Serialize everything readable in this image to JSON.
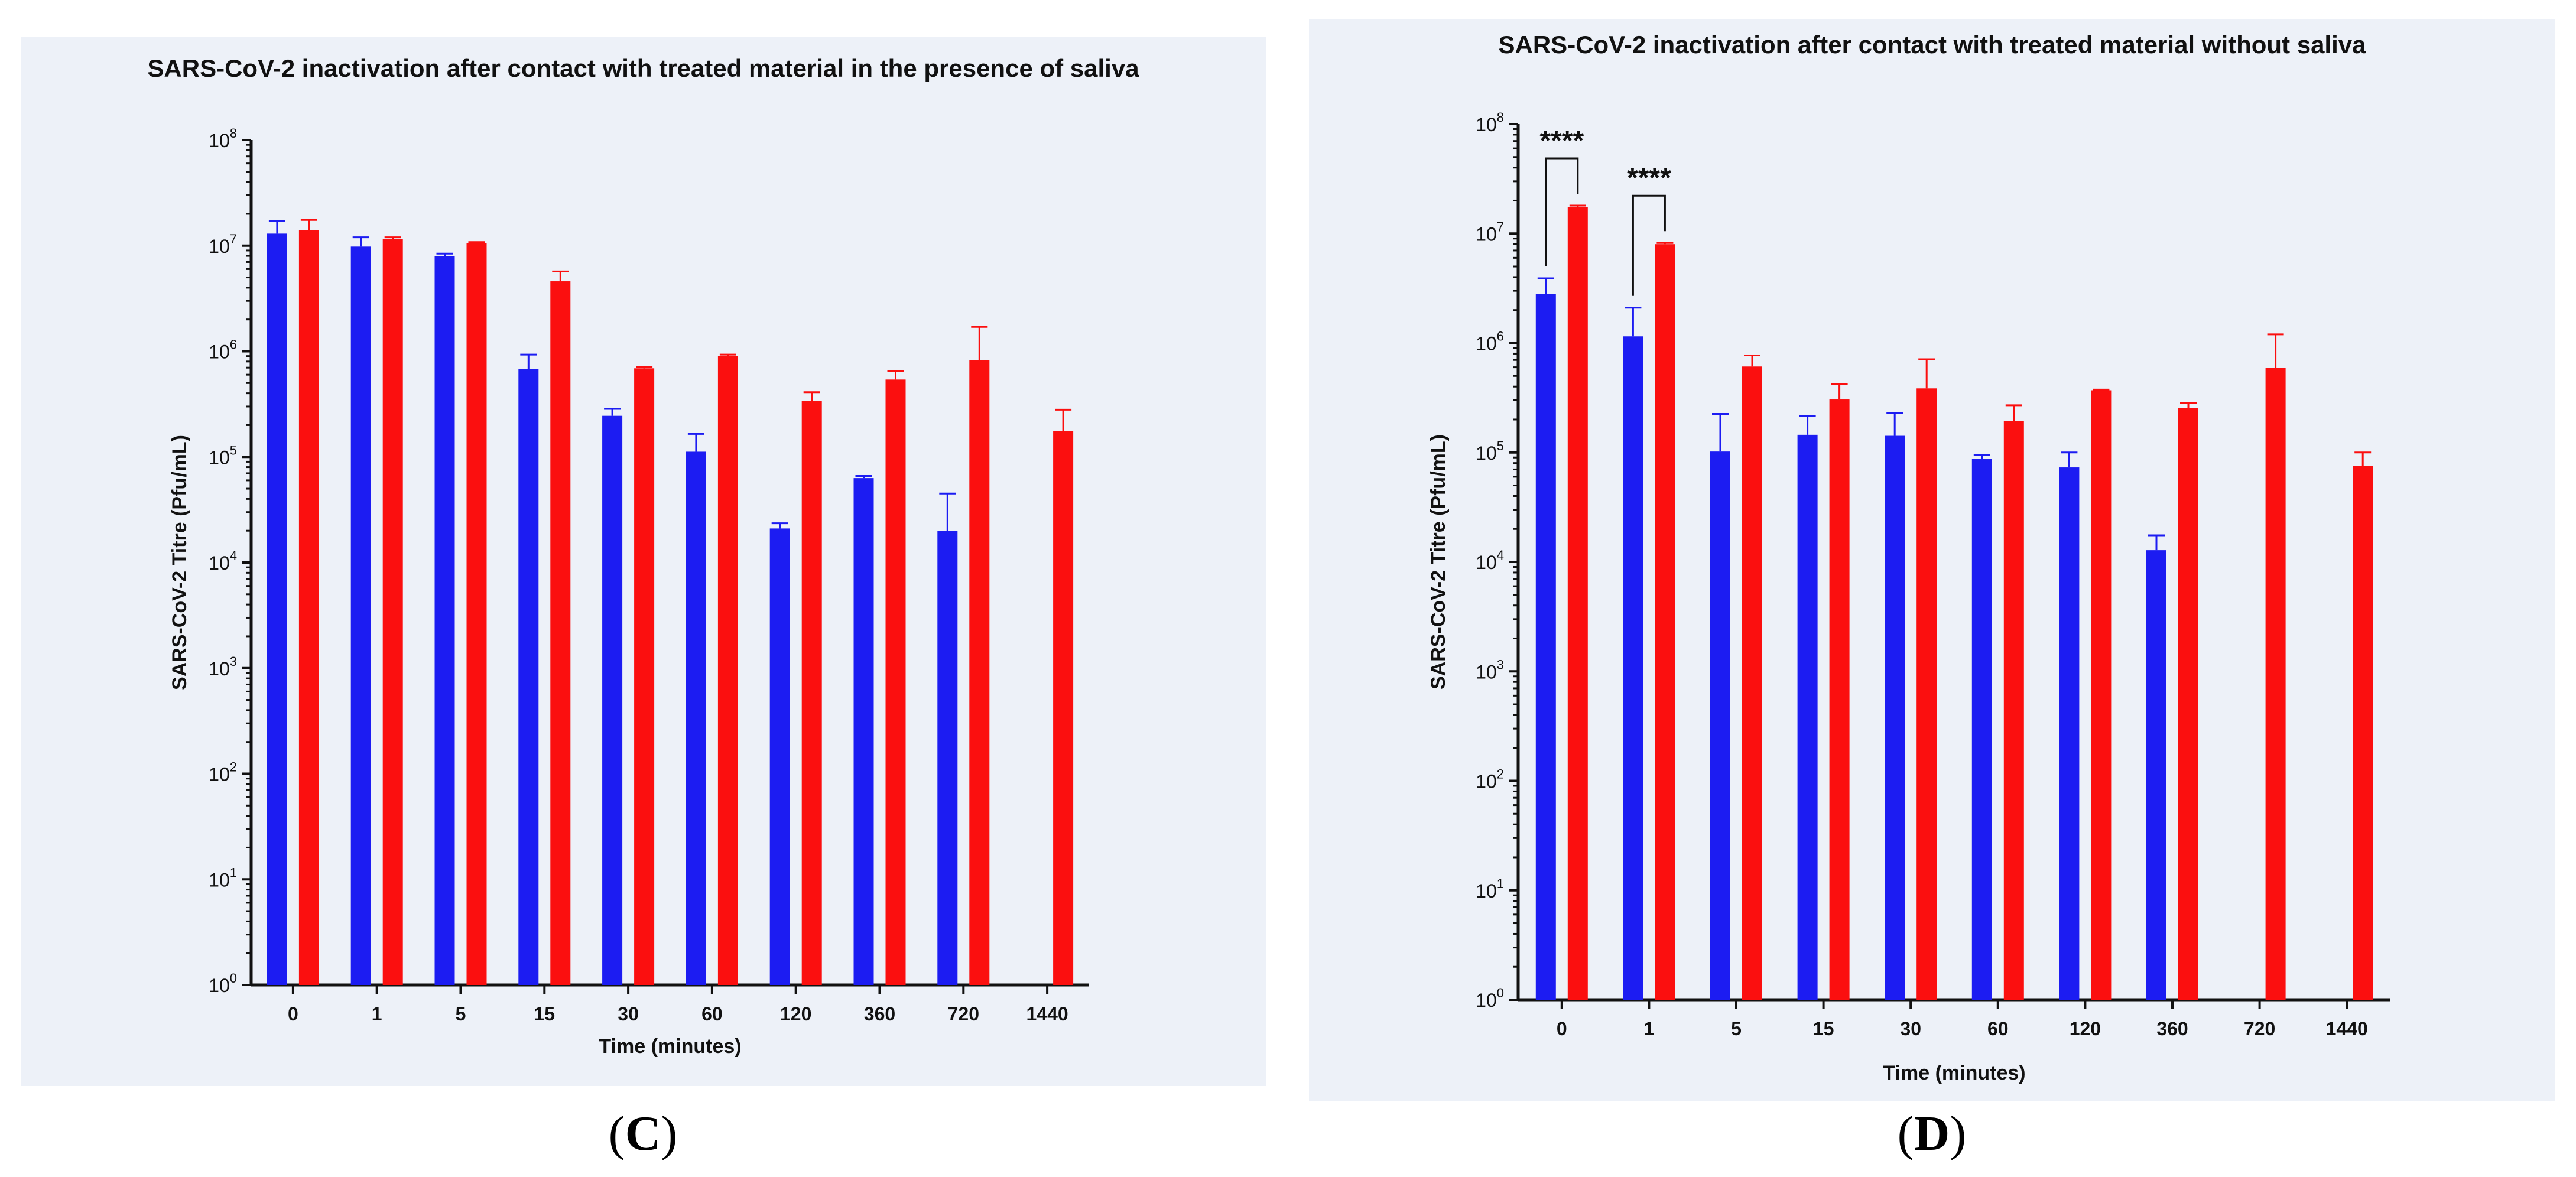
{
  "colors": {
    "series_a": "#1c1cf2",
    "series_b": "#fb0f0f",
    "panel_bg": "#edf1f8",
    "axis": "#111111"
  },
  "panels": [
    {
      "label_open": "(",
      "label_letter": "C",
      "label_close": ")"
    },
    {
      "label_open": "(",
      "label_letter": "D",
      "label_close": ")"
    }
  ],
  "chart_data": [
    {
      "type": "bar",
      "title": "SARS-CoV-2 inactivation after contact with treated material in the presence of saliva",
      "xlabel": "Time (minutes)",
      "ylabel": "SARS-CoV-2 Titre (Pfu/mL)",
      "yscale": "log10",
      "ylim": [
        1,
        100000000
      ],
      "ytick_exponents": [
        "0",
        "1",
        "2",
        "3",
        "4",
        "5",
        "6",
        "7",
        "8"
      ],
      "ytick_base": "10",
      "categories": [
        "0",
        "1",
        "5",
        "15",
        "30",
        "60",
        "120",
        "360",
        "720",
        "1440"
      ],
      "series": [
        {
          "name": "blue series",
          "color": "#1c1cf2",
          "values": [
            13000000,
            9800000,
            8000000,
            680000,
            245000,
            112000,
            21000,
            63000,
            20000,
            null
          ],
          "errors": [
            17000000,
            12000000,
            8400000,
            930000,
            285000,
            165000,
            23500,
            66000,
            45000,
            null
          ]
        },
        {
          "name": "red series",
          "color": "#fb0f0f",
          "values": [
            14000000,
            11500000,
            10500000,
            4600000,
            690000,
            900000,
            340000,
            540000,
            820000,
            175000
          ],
          "errors": [
            17500000,
            12000000,
            10800000,
            5700000,
            710000,
            930000,
            410000,
            650000,
            1700000,
            280000
          ]
        }
      ],
      "significance": []
    },
    {
      "type": "bar",
      "title": "SARS-CoV-2 inactivation after contact with treated material  without saliva",
      "xlabel": "Time (minutes)",
      "ylabel": "SARS-CoV-2 Titre (Pfu/mL)",
      "yscale": "log10",
      "ylim": [
        1,
        100000000
      ],
      "ytick_exponents": [
        "0",
        "1",
        "2",
        "3",
        "4",
        "5",
        "6",
        "7",
        "8"
      ],
      "ytick_base": "10",
      "categories": [
        "0",
        "1",
        "5",
        "15",
        "30",
        "60",
        "120",
        "360",
        "720",
        "1440"
      ],
      "series": [
        {
          "name": "blue series",
          "color": "#1c1cf2",
          "values": [
            2800000,
            1150000,
            102000,
            145000,
            142000,
            88000,
            73000,
            12800,
            null,
            null
          ],
          "errors": [
            3900000,
            2100000,
            225000,
            215000,
            230000,
            95000,
            100000,
            17500,
            null,
            null
          ]
        },
        {
          "name": "red series",
          "color": "#fb0f0f",
          "values": [
            17500000,
            8000000,
            610000,
            305000,
            385000,
            195000,
            370000,
            255000,
            590000,
            75000
          ],
          "errors": [
            18000000,
            8200000,
            770000,
            420000,
            710000,
            270000,
            375000,
            285000,
            1200000,
            100000
          ]
        }
      ],
      "significance": [
        {
          "category": "0",
          "label": "****"
        },
        {
          "category": "1",
          "label": "****"
        }
      ]
    }
  ]
}
